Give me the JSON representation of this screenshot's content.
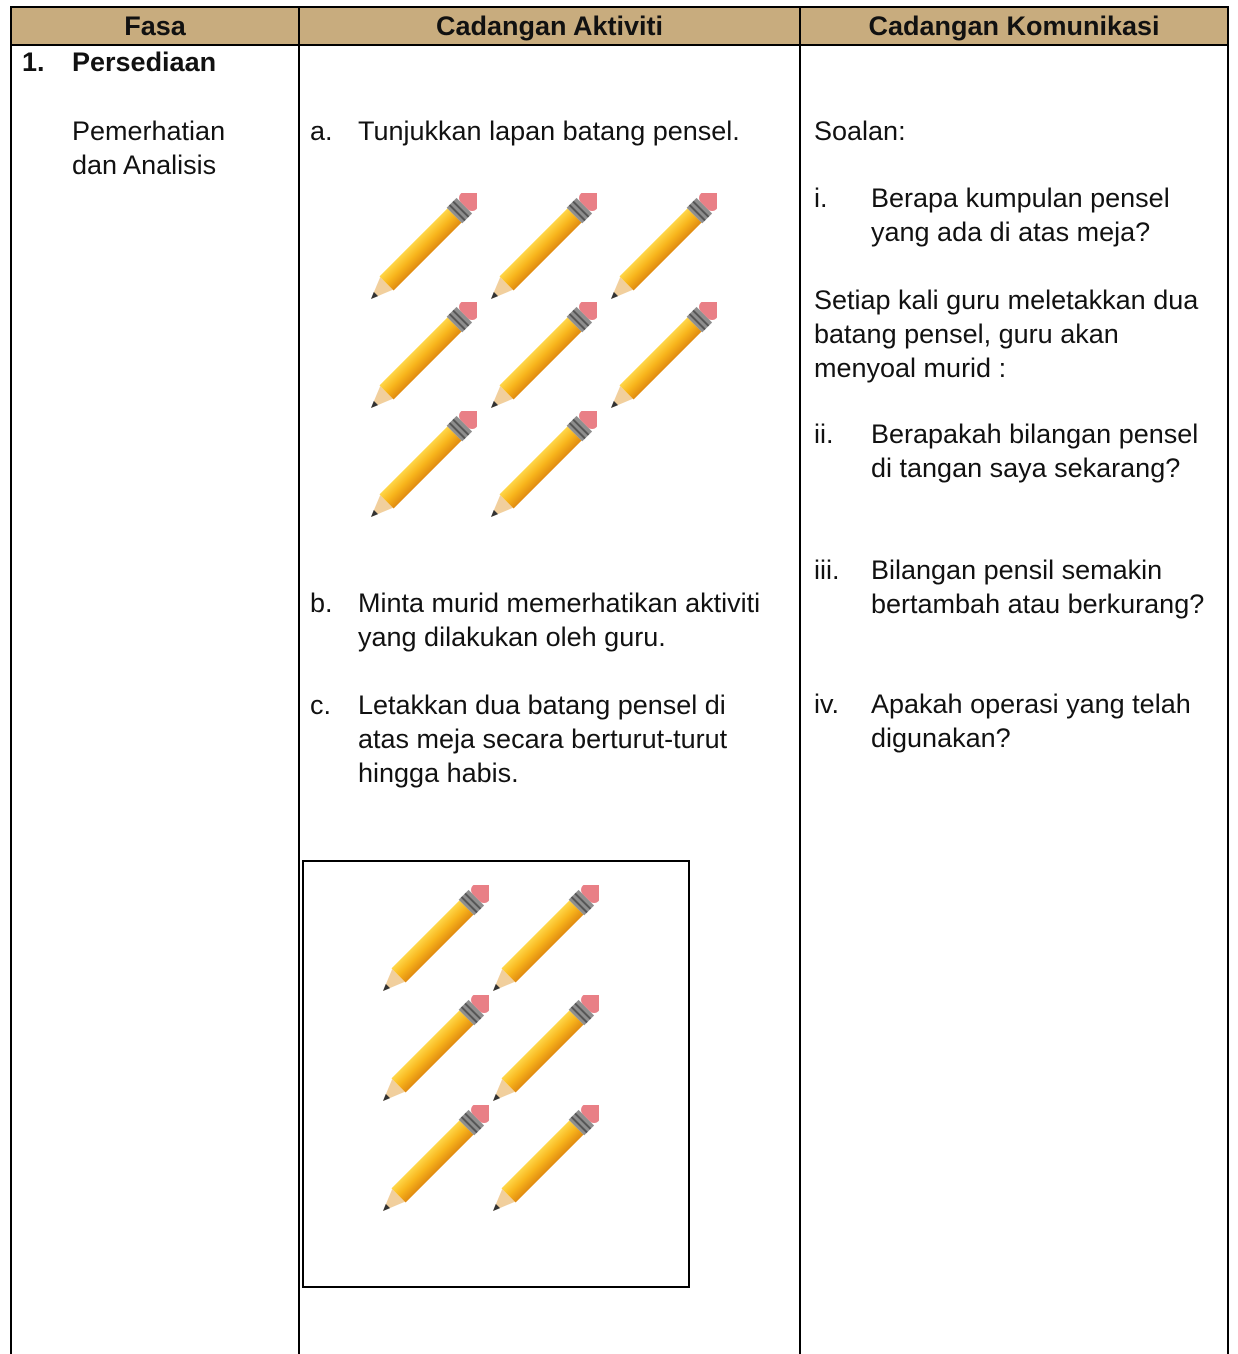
{
  "table": {
    "header": [
      "Fasa",
      "Cadangan Aktiviti",
      "Cadangan Komunikasi"
    ],
    "phase": {
      "number": "1.",
      "title": "Persediaan",
      "subtitle": "Pemerhatian dan Analisis"
    },
    "activities": [
      {
        "marker": "a.",
        "text": "Tunjukkan lapan batang pensel."
      },
      {
        "marker": "b.",
        "text": "Minta murid memerhatikan aktiviti yang dilakukan oleh guru."
      },
      {
        "marker": "c.",
        "text": "Letakkan dua batang pensel di atas meja secara berturut-turut hingga habis."
      }
    ],
    "communication": {
      "intro": "Soalan:",
      "interlude": "Setiap kali guru meletakkan dua batang pensel, guru akan menyoal murid :",
      "questions": [
        {
          "marker": "i.",
          "text": "Berapa kumpulan pensel yang ada di atas meja?"
        },
        {
          "marker": "ii.",
          "text": "Berapakah bilangan pensel di tangan saya sekarang?"
        },
        {
          "marker": "iii.",
          "text": "Bilangan pensil semakin bertambah atau berkurang?"
        },
        {
          "marker": "iv.",
          "text": "Apakah operasi yang telah digunakan?"
        }
      ]
    }
  }
}
